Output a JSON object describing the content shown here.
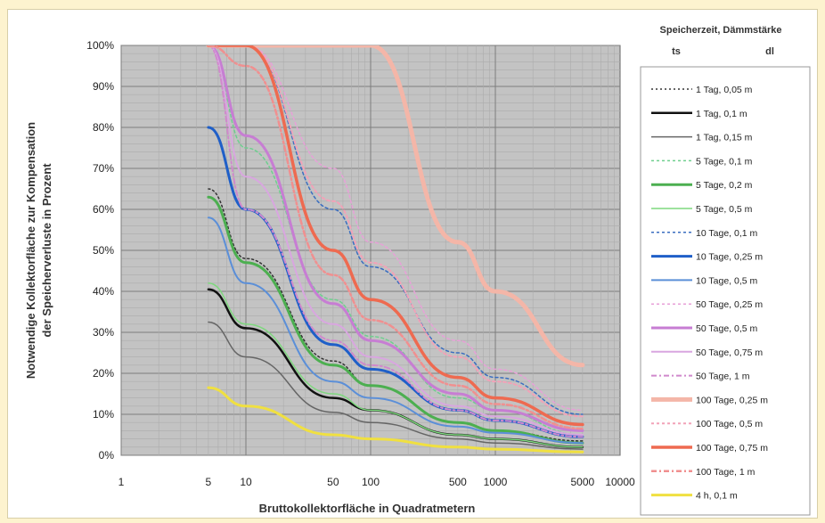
{
  "chart_data": {
    "type": "line",
    "xscale": "log",
    "xlim": [
      1,
      10000
    ],
    "ylim": [
      0,
      100
    ],
    "grid": true,
    "ylabel_line1": "Notwendige Kollektorfläche zur Kompensation",
    "ylabel_line2": "der Speicherverluste in Prozent",
    "xlabel": "Bruttokollektorfläche in Quadratmetern",
    "y_ticks": [
      "0%",
      "10%",
      "20%",
      "30%",
      "40%",
      "50%",
      "60%",
      "70%",
      "80%",
      "90%",
      "100%"
    ],
    "x_ticks": [
      {
        "value": 1,
        "label": "1"
      },
      {
        "value": 5,
        "label": "5"
      },
      {
        "value": 10,
        "label": "10"
      },
      {
        "value": 50,
        "label": "50"
      },
      {
        "value": 100,
        "label": "100"
      },
      {
        "value": 500,
        "label": "500"
      },
      {
        "value": 1000,
        "label": "1000"
      },
      {
        "value": 5000,
        "label": "5000"
      },
      {
        "value": 10000,
        "label": "10000"
      }
    ],
    "legend_title_line1": "Speicherzeit,  Dämmstärke",
    "legend_title_ts": "ts",
    "legend_title_dl": "dl",
    "legend_position": "right",
    "x": [
      5,
      10,
      50,
      100,
      500,
      1000,
      5000
    ],
    "series": [
      {
        "name": "1 Tag, 0,05 m",
        "color": "#333333",
        "dash": "2,3",
        "width": 1.5,
        "values": [
          65,
          48,
          23,
          17,
          8,
          6,
          3.5
        ]
      },
      {
        "name": "1 Tag, 0,1 m",
        "color": "#111111",
        "dash": "",
        "width": 2.5,
        "values": [
          40.5,
          31,
          14,
          11,
          5,
          4,
          2
        ]
      },
      {
        "name": "1 Tag, 0,15 m",
        "color": "#666666",
        "dash": "",
        "width": 1.5,
        "values": [
          32.5,
          24,
          10.5,
          8,
          4,
          3,
          1.5
        ]
      },
      {
        "name": "5 Tage, 0,1 m",
        "color": "#6fcf8f",
        "dash": "3,3",
        "width": 1.5,
        "values": [
          100,
          75,
          38,
          29,
          14,
          11,
          5
        ]
      },
      {
        "name": "5 Tage, 0,2 m",
        "color": "#4caf50",
        "dash": "",
        "width": 3,
        "values": [
          63,
          47,
          22,
          17,
          8,
          6,
          3
        ]
      },
      {
        "name": "5 Tage, 0,5 m",
        "color": "#7ed87e",
        "dash": "",
        "width": 1.5,
        "values": [
          42,
          32,
          15,
          11,
          5,
          4,
          2
        ]
      },
      {
        "name": "10 Tage, 0,1 m",
        "color": "#3a6ec0",
        "dash": "3,3",
        "width": 1.5,
        "values": [
          100,
          100,
          60,
          46,
          25,
          19,
          10
        ]
      },
      {
        "name": "10 Tage, 0,25 m",
        "color": "#1f5fc8",
        "dash": "",
        "width": 3,
        "values": [
          80,
          60,
          27,
          21,
          11,
          8.5,
          4.5
        ]
      },
      {
        "name": "10 Tage, 0,5 m",
        "color": "#5b8fd8",
        "dash": "",
        "width": 2,
        "values": [
          58,
          42,
          18,
          14,
          7,
          5.5,
          3
        ]
      },
      {
        "name": "50 Tage, 0,25 m",
        "color": "#e8a0d8",
        "dash": "3,3",
        "width": 1.5,
        "values": [
          100,
          100,
          70,
          52,
          28,
          21,
          11
        ]
      },
      {
        "name": "50 Tage, 0,5 m",
        "color": "#c77dd3",
        "dash": "",
        "width": 3,
        "values": [
          100,
          78,
          37,
          28,
          15,
          11,
          6
        ]
      },
      {
        "name": "50 Tage, 0,75 m",
        "color": "#d9a6e0",
        "dash": "",
        "width": 2,
        "values": [
          100,
          68,
          32,
          24,
          12,
          9.5,
          5
        ]
      },
      {
        "name": "50 Tage, 1 m",
        "color": "#d089cc",
        "dash": "6,3,2,3",
        "width": 2,
        "values": [
          100,
          60,
          28,
          22,
          11,
          8.5,
          4.5
        ]
      },
      {
        "name": "100 Tage, 0,25 m",
        "color": "#f4b6a8",
        "dash": "",
        "width": 5,
        "values": [
          100,
          100,
          100,
          100,
          52,
          40,
          22
        ]
      },
      {
        "name": "100 Tage, 0,5 m",
        "color": "#f2a2b8",
        "dash": "3,3",
        "width": 2,
        "values": [
          100,
          100,
          62,
          47,
          24,
          18,
          9.5
        ]
      },
      {
        "name": "100 Tage, 0,75 m",
        "color": "#ee6a50",
        "dash": "",
        "width": 3.5,
        "values": [
          100,
          100,
          50,
          38,
          19,
          14,
          7.5
        ]
      },
      {
        "name": "100 Tage, 1 m",
        "color": "#f09090",
        "dash": "6,3,2,3",
        "width": 2.5,
        "values": [
          100,
          95,
          44,
          33,
          17,
          12.5,
          6.5
        ]
      },
      {
        "name": "4 h, 0,1 m",
        "color": "#f0e040",
        "dash": "",
        "width": 3,
        "values": [
          16.5,
          12,
          5,
          4,
          2,
          1.5,
          0.8
        ]
      }
    ]
  }
}
